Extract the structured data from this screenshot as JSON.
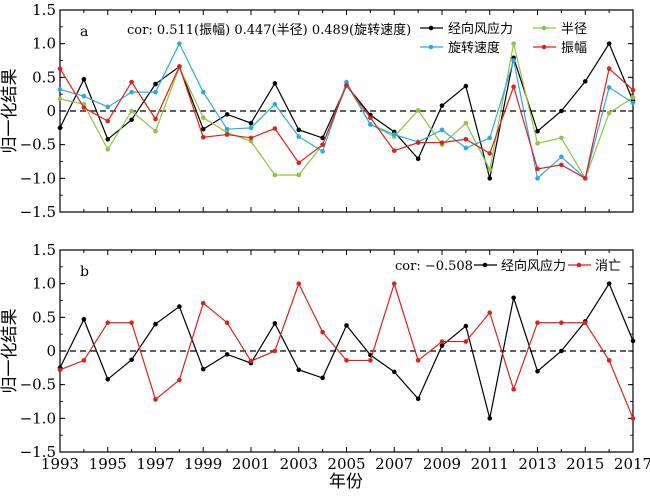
{
  "chart_data": [
    {
      "type": "line",
      "panel_label": "a",
      "annotation": "cor: 0.511(振幅)   0.447(半径)   0.489(旋转速度)",
      "xlabel": "",
      "ylabel": "归一化结果",
      "xlim": [
        1993,
        2017
      ],
      "ylim": [
        -1.5,
        1.5
      ],
      "yticks": [
        "−1.5",
        "−1.0",
        "−0.5",
        "0",
        "0.5",
        "1.0",
        "1.5"
      ],
      "x": [
        1993,
        1994,
        1995,
        1996,
        1997,
        1998,
        1999,
        2000,
        2001,
        2002,
        2003,
        2004,
        2005,
        2006,
        2007,
        2008,
        2009,
        2010,
        2011,
        2012,
        2013,
        2014,
        2015,
        2016,
        2017
      ],
      "zero_line": "dashed",
      "grid": false,
      "legend_position": "top-right",
      "series": [
        {
          "name": "经向风应力",
          "color": "#000000",
          "values": [
            -0.25,
            0.47,
            -0.42,
            -0.13,
            0.4,
            0.66,
            -0.27,
            -0.05,
            -0.18,
            0.41,
            -0.28,
            -0.4,
            0.38,
            -0.06,
            -0.31,
            -0.71,
            0.08,
            0.37,
            -1.0,
            0.79,
            -0.3,
            0.0,
            0.44,
            1.0,
            0.15
          ]
        },
        {
          "name": "半径",
          "color": "#8dc63f",
          "values": [
            0.18,
            0.1,
            -0.57,
            0.0,
            -0.3,
            0.65,
            -0.1,
            -0.32,
            -0.45,
            -0.95,
            -0.95,
            -0.5,
            0.4,
            -0.2,
            -0.38,
            0.01,
            -0.5,
            -0.18,
            -0.87,
            1.0,
            -0.48,
            -0.4,
            -1.0,
            -0.03,
            0.2
          ]
        },
        {
          "name": "旋转速度",
          "color": "#29abe2",
          "values": [
            0.32,
            0.22,
            0.06,
            0.28,
            0.28,
            1.0,
            0.28,
            -0.27,
            -0.25,
            0.1,
            -0.38,
            -0.6,
            0.43,
            -0.2,
            -0.35,
            -0.46,
            -0.28,
            -0.55,
            -0.4,
            0.75,
            -1.0,
            -0.68,
            -1.0,
            0.35,
            0.12
          ]
        },
        {
          "name": "振幅",
          "color": "#e0201b",
          "values": [
            0.63,
            0.05,
            -0.15,
            0.43,
            -0.12,
            0.66,
            -0.39,
            -0.35,
            -0.4,
            -0.26,
            -0.77,
            -0.5,
            0.38,
            -0.1,
            -0.59,
            -0.47,
            -0.47,
            -0.42,
            -0.63,
            0.36,
            -0.86,
            -0.8,
            -1.0,
            0.63,
            0.31
          ]
        }
      ]
    },
    {
      "type": "line",
      "panel_label": "b",
      "annotation": "cor: −0.508",
      "xlabel": "年份",
      "ylabel": "归一化结果",
      "xlim": [
        1993,
        2017
      ],
      "ylim": [
        -1.5,
        1.5
      ],
      "yticks": [
        "−1.5",
        "−1.0",
        "−0.5",
        "0",
        "0.5",
        "1.0",
        "1.5"
      ],
      "xticks": [
        "1993",
        "1995",
        "1997",
        "1999",
        "2001",
        "2003",
        "2005",
        "2007",
        "2009",
        "2011",
        "2013",
        "2015",
        "2017"
      ],
      "x": [
        1993,
        1994,
        1995,
        1996,
        1997,
        1998,
        1999,
        2000,
        2001,
        2002,
        2003,
        2004,
        2005,
        2006,
        2007,
        2008,
        2009,
        2010,
        2011,
        2012,
        2013,
        2014,
        2015,
        2016,
        2017
      ],
      "zero_line": "dashed",
      "grid": false,
      "legend_position": "top-right",
      "series": [
        {
          "name": "经向风应力",
          "color": "#000000",
          "values": [
            -0.25,
            0.47,
            -0.42,
            -0.13,
            0.4,
            0.66,
            -0.27,
            -0.05,
            -0.18,
            0.41,
            -0.28,
            -0.4,
            0.38,
            -0.06,
            -0.31,
            -0.71,
            0.08,
            0.37,
            -1.0,
            0.79,
            -0.3,
            0.0,
            0.44,
            1.0,
            0.15
          ]
        },
        {
          "name": "消亡",
          "color": "#e0201b",
          "values": [
            -0.28,
            -0.14,
            0.42,
            0.42,
            -0.72,
            -0.43,
            0.71,
            0.42,
            -0.15,
            0.0,
            1.0,
            0.28,
            -0.14,
            -0.14,
            1.0,
            -0.14,
            0.14,
            0.14,
            0.57,
            -0.57,
            0.42,
            0.42,
            0.42,
            -0.14,
            -1.0
          ]
        }
      ]
    }
  ]
}
